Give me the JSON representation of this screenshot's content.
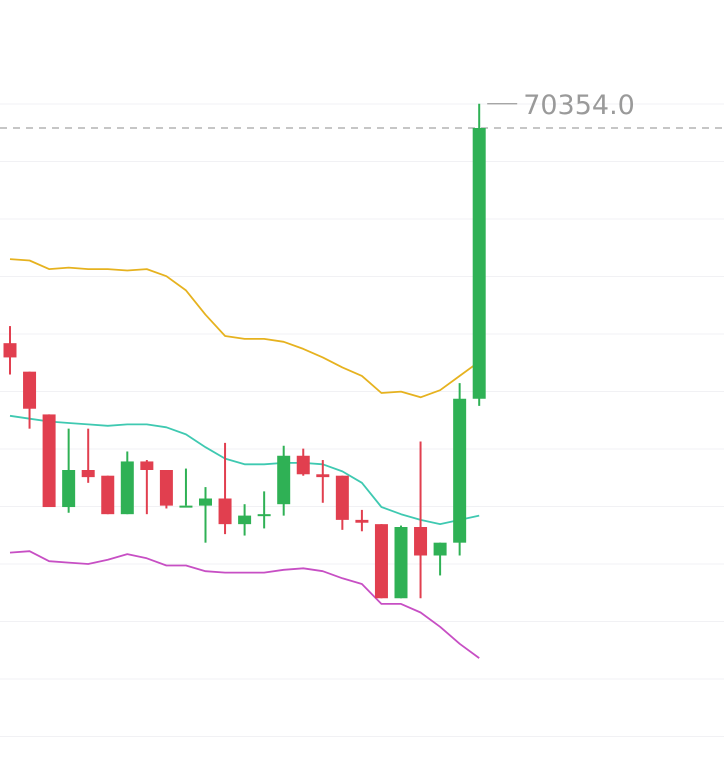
{
  "chart_data": {
    "type": "candlestick",
    "high_marker": "70354.0",
    "grid": true,
    "colors": {
      "up": "#2fb155",
      "down": "#e13f4f",
      "boll_upper": "#e6b21f",
      "boll_middle": "#3fc9b1",
      "boll_lower": "#c74fc4",
      "last_price_line": "#b3b3b3",
      "background": "#ffffff"
    },
    "last_price": 69720,
    "candles": [
      {
        "o": 68965,
        "h": 69025,
        "l": 68855,
        "c": 68915
      },
      {
        "o": 68865,
        "h": 68865,
        "l": 68665,
        "c": 68735
      },
      {
        "o": 68715,
        "h": 68715,
        "l": 68390,
        "c": 68390
      },
      {
        "o": 68390,
        "h": 68665,
        "l": 68370,
        "c": 68520
      },
      {
        "o": 68520,
        "h": 68665,
        "l": 68475,
        "c": 68495
      },
      {
        "o": 68500,
        "h": 68500,
        "l": 68365,
        "c": 68365
      },
      {
        "o": 68365,
        "h": 68585,
        "l": 68365,
        "c": 68550
      },
      {
        "o": 68550,
        "h": 68555,
        "l": 68365,
        "c": 68520
      },
      {
        "o": 68520,
        "h": 68520,
        "l": 68385,
        "c": 68395
      },
      {
        "o": 68395,
        "h": 68525,
        "l": 68395,
        "c": 68395
      },
      {
        "o": 68395,
        "h": 68460,
        "l": 68265,
        "c": 68420
      },
      {
        "o": 68420,
        "h": 68615,
        "l": 68295,
        "c": 68330
      },
      {
        "o": 68330,
        "h": 68400,
        "l": 68290,
        "c": 68360
      },
      {
        "o": 68365,
        "h": 68445,
        "l": 68315,
        "c": 68365
      },
      {
        "o": 68400,
        "h": 68605,
        "l": 68360,
        "c": 68570
      },
      {
        "o": 68570,
        "h": 68595,
        "l": 68500,
        "c": 68505
      },
      {
        "o": 68505,
        "h": 68555,
        "l": 68405,
        "c": 68495
      },
      {
        "o": 68500,
        "h": 68500,
        "l": 68310,
        "c": 68345
      },
      {
        "o": 68345,
        "h": 68380,
        "l": 68305,
        "c": 68335
      },
      {
        "o": 68330,
        "h": 68330,
        "l": 68070,
        "c": 68070
      },
      {
        "o": 68070,
        "h": 68325,
        "l": 68070,
        "c": 68320
      },
      {
        "o": 68320,
        "h": 68620,
        "l": 68070,
        "c": 68220
      },
      {
        "o": 68220,
        "h": 68265,
        "l": 68150,
        "c": 68265
      },
      {
        "o": 68265,
        "h": 68825,
        "l": 68220,
        "c": 68770
      },
      {
        "o": 68770,
        "h": 69805,
        "l": 68745,
        "c": 69720
      }
    ],
    "bollinger": {
      "upper": [
        69260,
        69255,
        69225,
        69230,
        69225,
        69225,
        69220,
        69225,
        69200,
        69150,
        69065,
        68990,
        68980,
        68980,
        68970,
        68945,
        68915,
        68880,
        68850,
        68790,
        68795,
        68775,
        68800,
        68850,
        68900
      ],
      "middle": [
        68710,
        68700,
        68690,
        68685,
        68680,
        68675,
        68680,
        68680,
        68670,
        68645,
        68600,
        68560,
        68540,
        68540,
        68545,
        68545,
        68540,
        68515,
        68475,
        68390,
        68365,
        68345,
        68330,
        68345,
        68360
      ],
      "lower": [
        68230,
        68235,
        68200,
        68195,
        68190,
        68205,
        68225,
        68210,
        68185,
        68185,
        68165,
        68160,
        68160,
        68160,
        68170,
        68175,
        68165,
        68140,
        68120,
        68050,
        68050,
        68020,
        67970,
        67910,
        67860
      ]
    }
  }
}
